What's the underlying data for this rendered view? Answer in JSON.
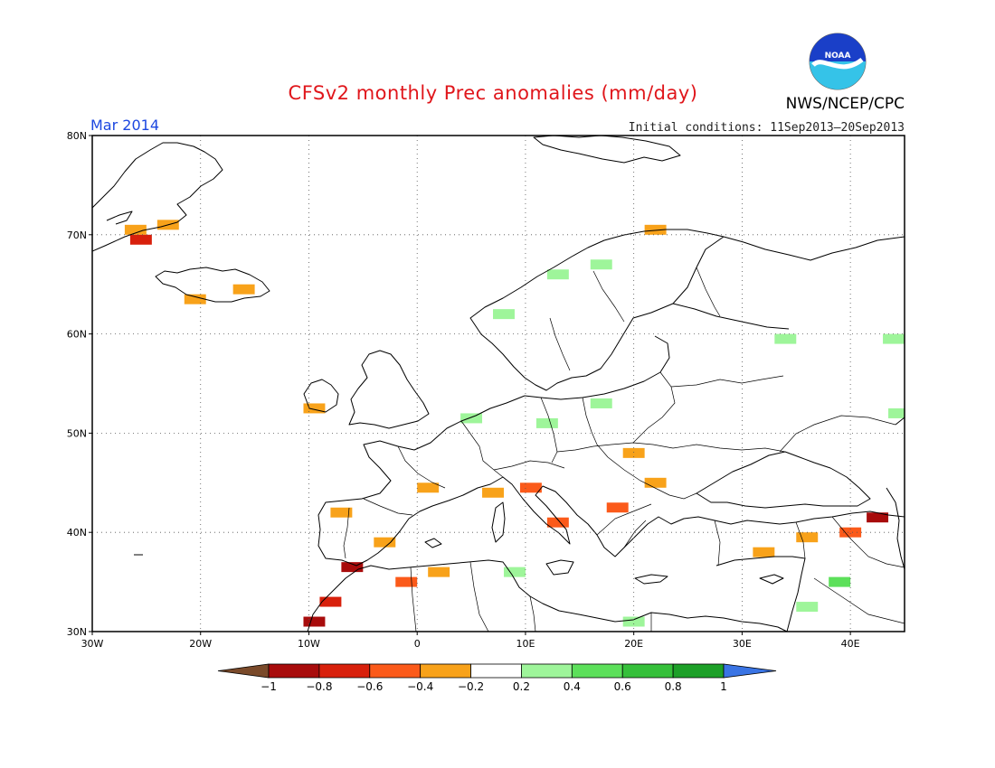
{
  "header": {
    "title": "CFSv2 monthly Prec anomalies (mm/day)",
    "month": "Mar 2014",
    "initial_conditions": "Initial conditions: 11Sep2013–20Sep2013",
    "agency": "NWS/NCEP/CPC",
    "logo_text": "NOAA"
  },
  "map": {
    "lon_range": [
      -30,
      45
    ],
    "lat_range": [
      30,
      80
    ],
    "lat_ticks": [
      {
        "value": 80,
        "label": "80N"
      },
      {
        "value": 70,
        "label": "70N"
      },
      {
        "value": 60,
        "label": "60N"
      },
      {
        "value": 50,
        "label": "50N"
      },
      {
        "value": 40,
        "label": "40N"
      },
      {
        "value": 30,
        "label": "30N"
      }
    ],
    "lon_ticks": [
      {
        "value": -30,
        "label": "30W"
      },
      {
        "value": -20,
        "label": "20W"
      },
      {
        "value": -10,
        "label": "10W"
      },
      {
        "value": 0,
        "label": "0"
      },
      {
        "value": 10,
        "label": "10E"
      },
      {
        "value": 20,
        "label": "20E"
      },
      {
        "value": 30,
        "label": "30E"
      },
      {
        "value": 40,
        "label": "40E"
      }
    ],
    "anomaly_regions": [
      {
        "lon": -26,
        "lat": 70.5,
        "value": -0.3
      },
      {
        "lon": -23,
        "lat": 71,
        "value": -0.3
      },
      {
        "lon": -25.5,
        "lat": 69.5,
        "value": -0.7
      },
      {
        "lon": -20.5,
        "lat": 63.5,
        "value": -0.3
      },
      {
        "lon": -16,
        "lat": 64.5,
        "value": -0.3
      },
      {
        "lon": -9.5,
        "lat": 52.5,
        "value": -0.3
      },
      {
        "lon": 22,
        "lat": 70.5,
        "value": -0.3
      },
      {
        "lon": 13,
        "lat": 66,
        "value": 0.3
      },
      {
        "lon": 17,
        "lat": 67,
        "value": 0.3
      },
      {
        "lon": 8,
        "lat": 62,
        "value": 0.3
      },
      {
        "lon": 34,
        "lat": 59.5,
        "value": 0.3
      },
      {
        "lon": 44,
        "lat": 59.5,
        "value": 0.3
      },
      {
        "lon": 12,
        "lat": 51,
        "value": 0.3
      },
      {
        "lon": 17,
        "lat": 53,
        "value": 0.3
      },
      {
        "lon": 5,
        "lat": 51.5,
        "value": 0.3
      },
      {
        "lon": 20,
        "lat": 48,
        "value": -0.3
      },
      {
        "lon": 22,
        "lat": 45,
        "value": -0.3
      },
      {
        "lon": 1,
        "lat": 44.5,
        "value": -0.3
      },
      {
        "lon": 10.5,
        "lat": 44.5,
        "value": -0.5
      },
      {
        "lon": 13,
        "lat": 41,
        "value": -0.5
      },
      {
        "lon": 7,
        "lat": 44,
        "value": -0.3
      },
      {
        "lon": 18.5,
        "lat": 42.5,
        "value": -0.5
      },
      {
        "lon": -7,
        "lat": 42,
        "value": -0.3
      },
      {
        "lon": -3,
        "lat": 39,
        "value": -0.3
      },
      {
        "lon": -6,
        "lat": 36.5,
        "value": -0.9
      },
      {
        "lon": -8,
        "lat": 33,
        "value": -0.7
      },
      {
        "lon": -9.5,
        "lat": 31,
        "value": -0.9
      },
      {
        "lon": 2,
        "lat": 36,
        "value": -0.3
      },
      {
        "lon": -1,
        "lat": 35,
        "value": -0.5
      },
      {
        "lon": 9,
        "lat": 36,
        "value": 0.3
      },
      {
        "lon": 32,
        "lat": 38,
        "value": -0.3
      },
      {
        "lon": 36,
        "lat": 39.5,
        "value": -0.3
      },
      {
        "lon": 40,
        "lat": 40,
        "value": -0.5
      },
      {
        "lon": 42.5,
        "lat": 41.5,
        "value": -0.9
      },
      {
        "lon": 39,
        "lat": 35,
        "value": 0.5
      },
      {
        "lon": 36,
        "lat": 32.5,
        "value": 0.3
      },
      {
        "lon": 44.5,
        "lat": 52,
        "value": 0.3
      },
      {
        "lon": 20,
        "lat": 31,
        "value": 0.3
      }
    ]
  },
  "colorbar": {
    "levels": [
      -1,
      -0.8,
      -0.6,
      -0.4,
      -0.2,
      0.2,
      0.4,
      0.6,
      0.8,
      1
    ],
    "tick_labels": [
      "−1",
      "−0.8",
      "−0.6",
      "−0.4",
      "−0.2",
      "0.2",
      "0.4",
      "0.6",
      "0.8",
      "1"
    ],
    "colors": [
      "#7a4a2a",
      "#a80c0c",
      "#d8200c",
      "#fb5a1a",
      "#f8a21a",
      "#ffffff",
      "#9ef59a",
      "#5ce05a",
      "#35c03a",
      "#1da028",
      "#3a74e4"
    ]
  }
}
